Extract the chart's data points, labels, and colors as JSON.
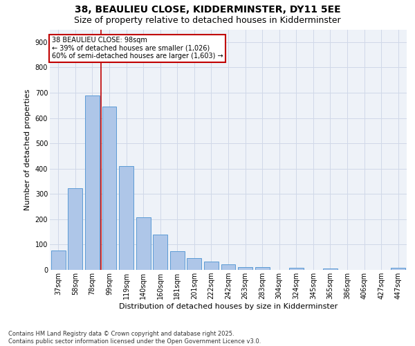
{
  "title": "38, BEAULIEU CLOSE, KIDDERMINSTER, DY11 5EE",
  "subtitle": "Size of property relative to detached houses in Kidderminster",
  "xlabel": "Distribution of detached houses by size in Kidderminster",
  "ylabel": "Number of detached properties",
  "categories": [
    "37sqm",
    "58sqm",
    "78sqm",
    "99sqm",
    "119sqm",
    "140sqm",
    "160sqm",
    "181sqm",
    "201sqm",
    "222sqm",
    "242sqm",
    "263sqm",
    "283sqm",
    "304sqm",
    "324sqm",
    "345sqm",
    "365sqm",
    "386sqm",
    "406sqm",
    "427sqm",
    "447sqm"
  ],
  "values": [
    77,
    323,
    690,
    645,
    410,
    207,
    140,
    75,
    46,
    32,
    22,
    11,
    10,
    0,
    7,
    0,
    5,
    0,
    0,
    0,
    7
  ],
  "bar_color": "#aec6e8",
  "bar_edge_color": "#5b9bd5",
  "vline_color": "#c00000",
  "annotation_text": "38 BEAULIEU CLOSE: 98sqm\n← 39% of detached houses are smaller (1,026)\n60% of semi-detached houses are larger (1,603) →",
  "annotation_box_color": "#c00000",
  "annotation_bg": "white",
  "ylim": [
    0,
    950
  ],
  "yticks": [
    0,
    100,
    200,
    300,
    400,
    500,
    600,
    700,
    800,
    900
  ],
  "grid_color": "#d0d8e8",
  "bg_color": "#eef2f8",
  "footer": "Contains HM Land Registry data © Crown copyright and database right 2025.\nContains public sector information licensed under the Open Government Licence v3.0.",
  "title_fontsize": 10,
  "subtitle_fontsize": 9,
  "axis_label_fontsize": 8,
  "tick_fontsize": 7,
  "annotation_fontsize": 7,
  "footer_fontsize": 6
}
